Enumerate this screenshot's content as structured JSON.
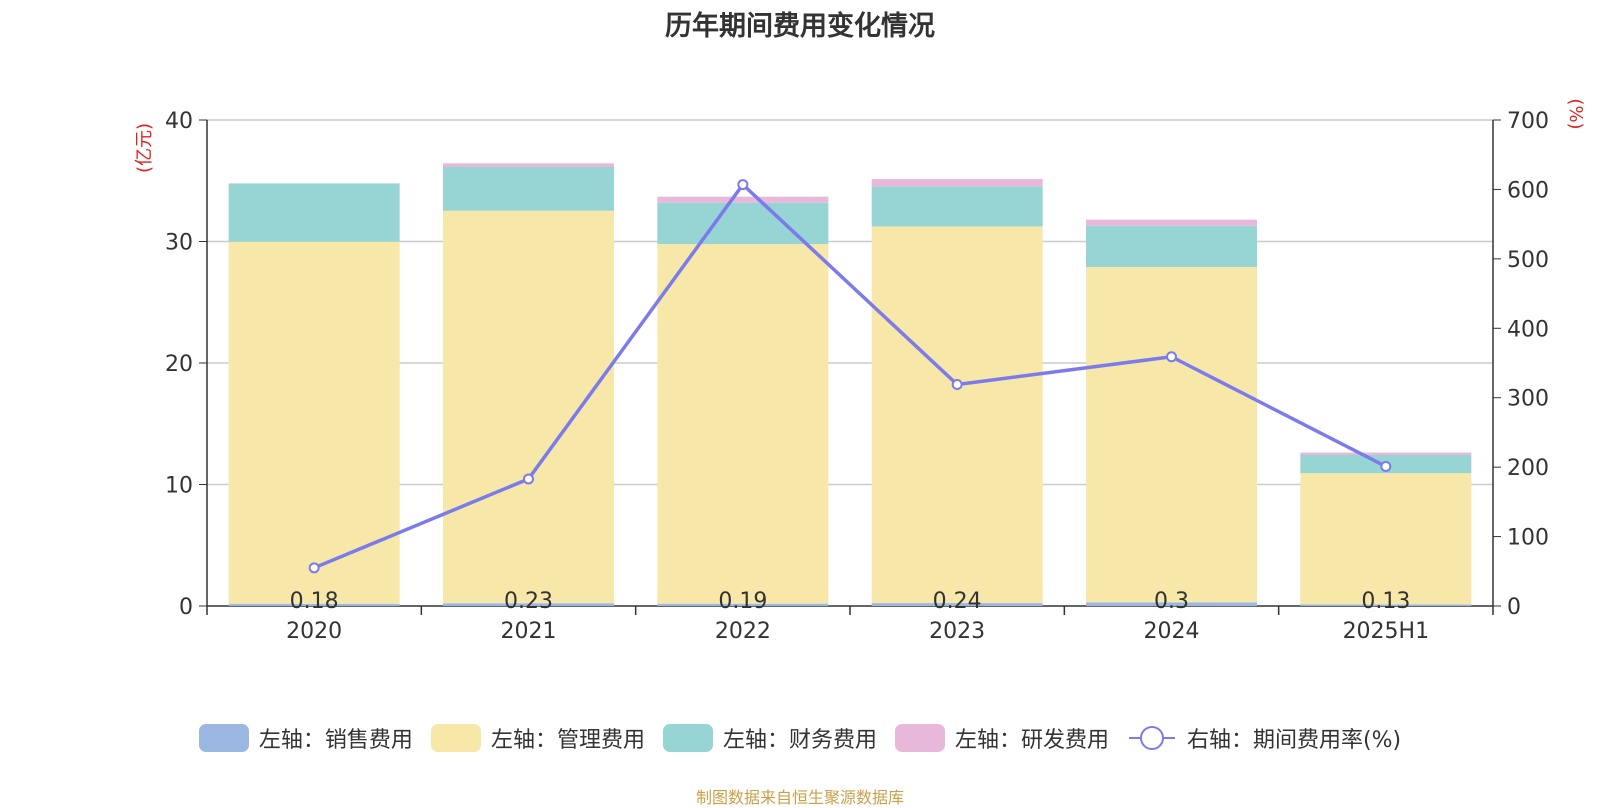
{
  "chart_data": {
    "type": "bar",
    "title": "历年期间费用变化情况",
    "categories": [
      "2020",
      "2021",
      "2022",
      "2023",
      "2024",
      "2025H1"
    ],
    "y_left": {
      "unit_label": "(亿元)",
      "ticks": [
        "0",
        "10",
        "20",
        "30",
        "40"
      ],
      "range": [
        0,
        40
      ]
    },
    "y_right": {
      "unit_label": "(%)",
      "ticks": [
        "0",
        "100",
        "200",
        "300",
        "400",
        "500",
        "600",
        "700"
      ],
      "range": [
        0,
        700
      ]
    },
    "series": [
      {
        "name": "左轴：销售费用",
        "type": "bar",
        "axis": "left",
        "color": "#9bb8e3",
        "values": [
          0.18,
          0.23,
          0.19,
          0.24,
          0.3,
          0.13
        ],
        "labels": [
          "0.18",
          "0.23",
          "0.19",
          "0.24",
          "0.3",
          "0.13"
        ]
      },
      {
        "name": "左轴：管理费用",
        "type": "bar",
        "axis": "left",
        "color": "#f7e7a8",
        "values": [
          29.8,
          32.3,
          29.6,
          31.0,
          27.6,
          10.8
        ]
      },
      {
        "name": "左轴：财务费用",
        "type": "bar",
        "axis": "left",
        "color": "#97d4d4",
        "values": [
          4.8,
          3.6,
          3.4,
          3.3,
          3.4,
          1.5
        ]
      },
      {
        "name": "左轴：研发费用",
        "type": "bar",
        "axis": "left",
        "color": "#e8b8da",
        "values": [
          0,
          0.3,
          0.5,
          0.6,
          0.5,
          0.2
        ]
      },
      {
        "name": "右轴：期间费用率(%)",
        "type": "line",
        "axis": "right",
        "color": "#7b7bec",
        "values": [
          55,
          183,
          607,
          319,
          359,
          201
        ]
      }
    ],
    "grid": true,
    "legend_position": "bottom"
  },
  "source_note": "制图数据来自恒生聚源数据库"
}
